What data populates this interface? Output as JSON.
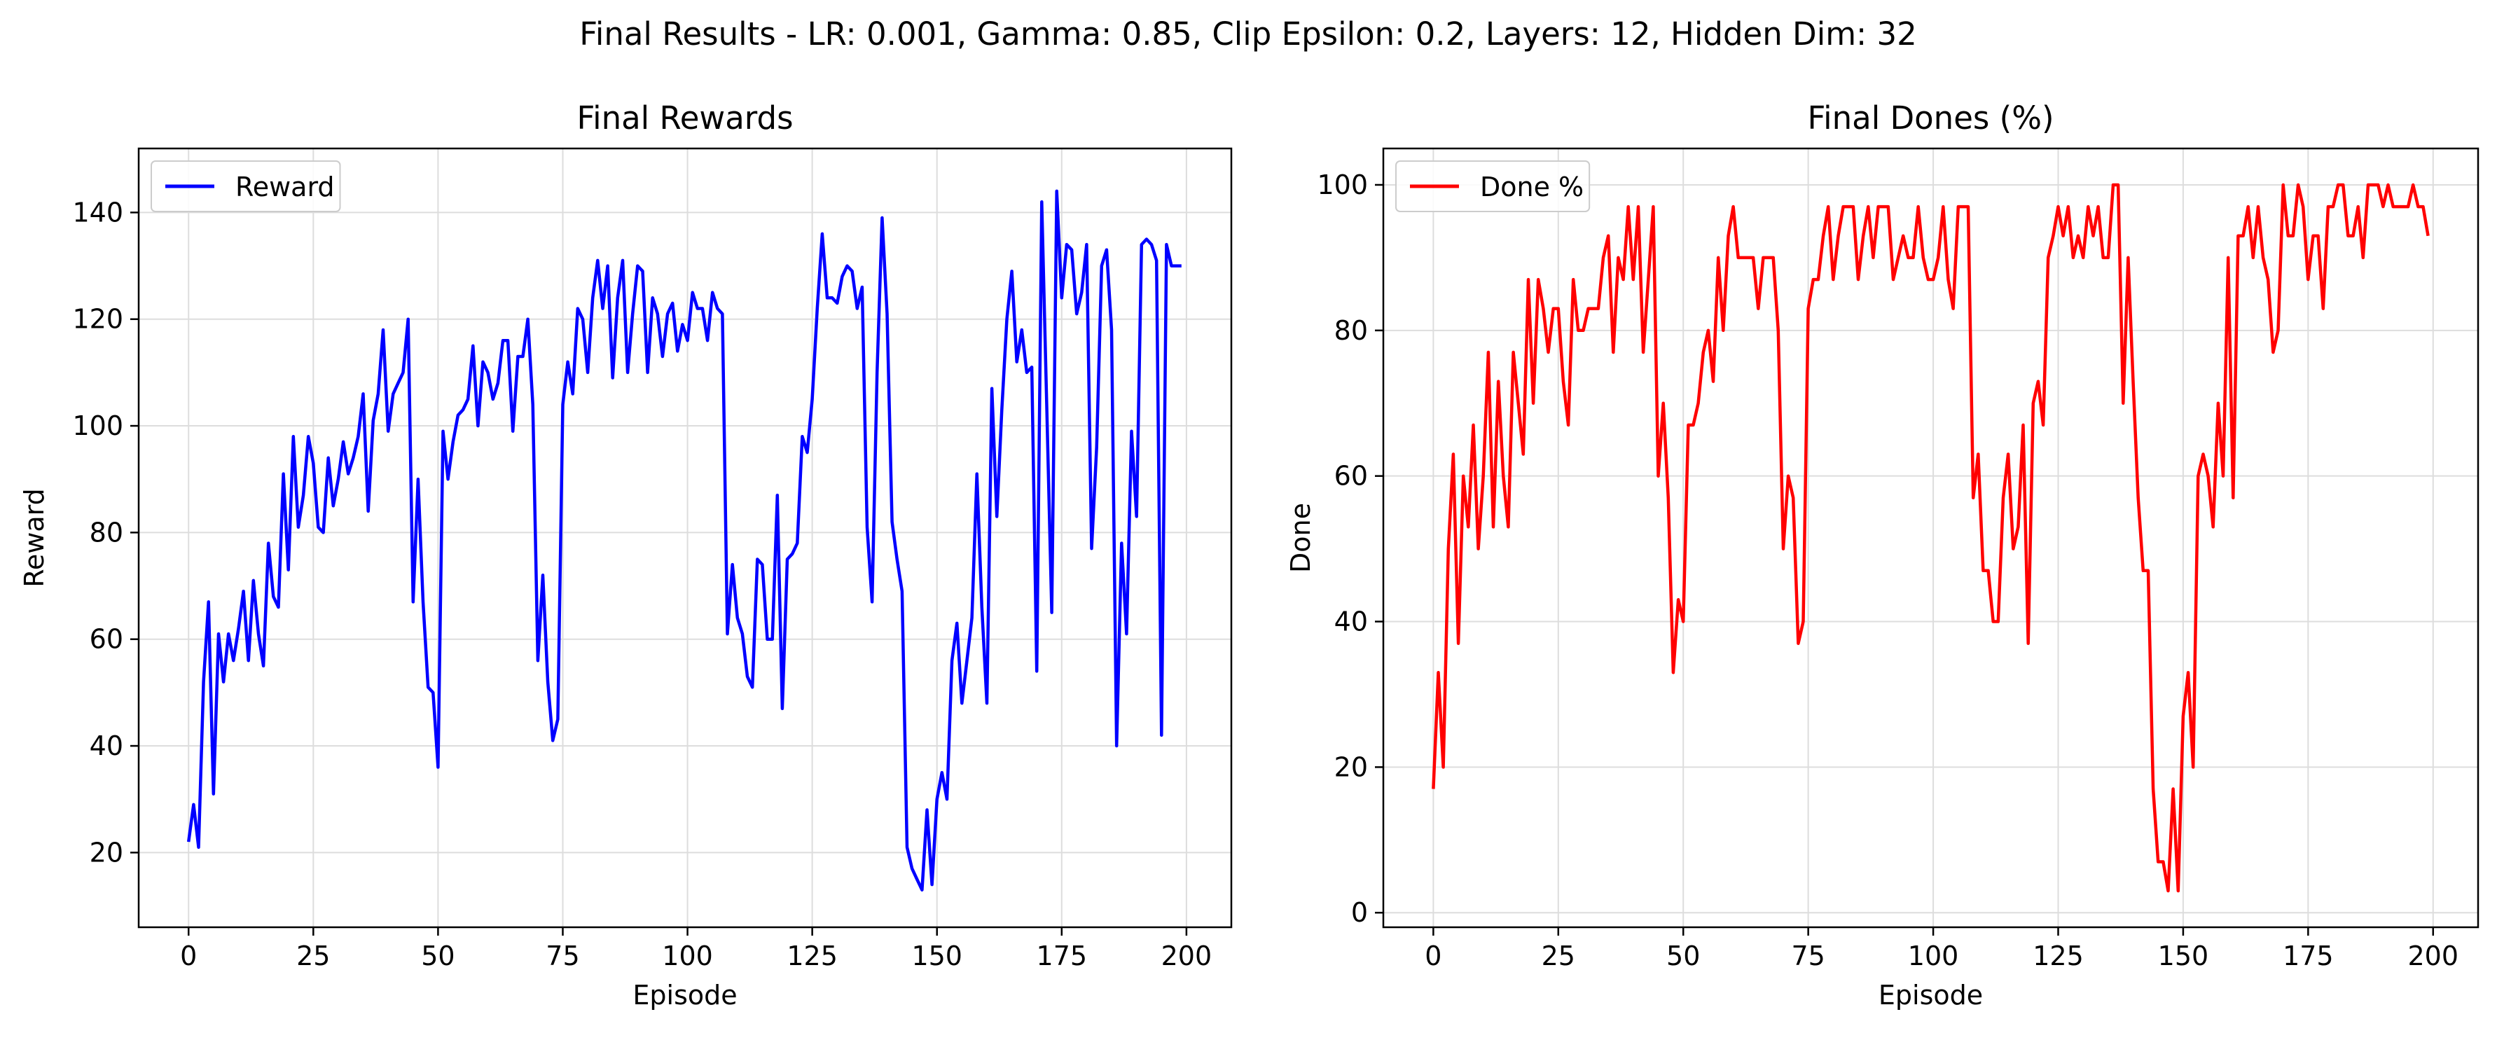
{
  "figure_title": "Final Results - LR: 0.001, Gamma: 0.85, Clip Epsilon: 0.2, Layers: 12, Hidden Dim: 32",
  "chart_data": [
    {
      "type": "line",
      "title": "Final Rewards",
      "xlabel": "Episode",
      "ylabel": "Reward",
      "xlim": [
        -10,
        209
      ],
      "ylim": [
        6,
        152
      ],
      "xticks": [
        0,
        25,
        50,
        75,
        100,
        125,
        150,
        175,
        200
      ],
      "yticks": [
        20,
        40,
        60,
        80,
        100,
        120,
        140
      ],
      "grid": true,
      "legend_position": "top-left",
      "series": [
        {
          "name": "Reward",
          "color": "#0000ff",
          "x": [
            0,
            1,
            2,
            3,
            4,
            5,
            6,
            7,
            8,
            9,
            10,
            11,
            12,
            13,
            14,
            15,
            16,
            17,
            18,
            19,
            20,
            21,
            22,
            23,
            24,
            25,
            26,
            27,
            28,
            29,
            30,
            31,
            32,
            33,
            34,
            35,
            36,
            37,
            38,
            39,
            40,
            41,
            42,
            43,
            44,
            45,
            46,
            47,
            48,
            49,
            50,
            51,
            52,
            53,
            54,
            55,
            56,
            57,
            58,
            59,
            60,
            61,
            62,
            63,
            64,
            65,
            66,
            67,
            68,
            69,
            70,
            71,
            72,
            73,
            74,
            75,
            76,
            77,
            78,
            79,
            80,
            81,
            82,
            83,
            84,
            85,
            86,
            87,
            88,
            89,
            90,
            91,
            92,
            93,
            94,
            95,
            96,
            97,
            98,
            99,
            100,
            101,
            102,
            103,
            104,
            105,
            106,
            107,
            108,
            109,
            110,
            111,
            112,
            113,
            114,
            115,
            116,
            117,
            118,
            119,
            120,
            121,
            122,
            123,
            124,
            125,
            126,
            127,
            128,
            129,
            130,
            131,
            132,
            133,
            134,
            135,
            136,
            137,
            138,
            139,
            140,
            141,
            142,
            143,
            144,
            145,
            146,
            147,
            148,
            149,
            150,
            151,
            152,
            153,
            154,
            155,
            156,
            157,
            158,
            159,
            160,
            161,
            162,
            163,
            164,
            165,
            166,
            167,
            168,
            169,
            170,
            171,
            172,
            173,
            174,
            175,
            176,
            177,
            178,
            179,
            180,
            181,
            182,
            183,
            184,
            185,
            186,
            187,
            188,
            189,
            190,
            191,
            192,
            193,
            194,
            195,
            196,
            197,
            198,
            199
          ],
          "y": [
            22,
            29,
            21,
            52,
            67,
            31,
            61,
            52,
            61,
            56,
            62,
            69,
            56,
            71,
            61,
            55,
            78,
            68,
            66,
            91,
            73,
            98,
            81,
            87,
            98,
            93,
            81,
            80,
            94,
            85,
            90,
            97,
            91,
            94,
            98,
            106,
            84,
            101,
            106,
            118,
            99,
            106,
            108,
            110,
            120,
            67,
            90,
            67,
            51,
            50,
            36,
            99,
            90,
            97,
            102,
            103,
            105,
            115,
            100,
            112,
            110,
            105,
            108,
            116,
            116,
            99,
            113,
            113,
            120,
            104,
            56,
            72,
            52,
            41,
            45,
            104,
            112,
            106,
            122,
            120,
            110,
            124,
            131,
            122,
            130,
            109,
            124,
            131,
            110,
            121,
            130,
            129,
            110,
            124,
            121,
            113,
            121,
            123,
            114,
            119,
            116,
            125,
            122,
            122,
            116,
            125,
            122,
            121,
            61,
            74,
            64,
            61,
            53,
            51,
            75,
            74,
            60,
            60,
            87,
            47,
            75,
            76,
            78,
            98,
            95,
            105,
            122,
            136,
            124,
            124,
            123,
            128,
            130,
            129,
            122,
            126,
            81,
            67,
            110,
            139,
            121,
            82,
            75,
            69,
            21,
            17,
            15,
            13,
            28,
            14,
            30,
            35,
            30,
            56,
            63,
            48,
            56,
            64,
            91,
            66,
            48,
            107,
            83,
            103,
            120,
            129,
            112,
            118,
            110,
            111,
            54,
            142,
            104,
            65,
            144,
            124,
            134,
            133,
            121,
            125,
            134,
            77,
            96,
            130,
            133,
            118,
            40,
            78,
            61,
            99,
            83,
            134,
            135,
            134,
            131,
            42,
            134,
            130,
            130,
            130
          ]
        }
      ]
    },
    {
      "type": "line",
      "title": "Final Dones (%)",
      "xlabel": "Episode",
      "ylabel": "Done",
      "xlim": [
        -10,
        209
      ],
      "ylim": [
        -2,
        105
      ],
      "xticks": [
        0,
        25,
        50,
        75,
        100,
        125,
        150,
        175,
        200
      ],
      "yticks": [
        0,
        20,
        40,
        60,
        80,
        100
      ],
      "grid": true,
      "legend_position": "top-left",
      "series": [
        {
          "name": "Done %",
          "color": "#ff0000",
          "x": [
            0,
            1,
            2,
            3,
            4,
            5,
            6,
            7,
            8,
            9,
            10,
            11,
            12,
            13,
            14,
            15,
            16,
            17,
            18,
            19,
            20,
            21,
            22,
            23,
            24,
            25,
            26,
            27,
            28,
            29,
            30,
            31,
            32,
            33,
            34,
            35,
            36,
            37,
            38,
            39,
            40,
            41,
            42,
            43,
            44,
            45,
            46,
            47,
            48,
            49,
            50,
            51,
            52,
            53,
            54,
            55,
            56,
            57,
            58,
            59,
            60,
            61,
            62,
            63,
            64,
            65,
            66,
            67,
            68,
            69,
            70,
            71,
            72,
            73,
            74,
            75,
            76,
            77,
            78,
            79,
            80,
            81,
            82,
            83,
            84,
            85,
            86,
            87,
            88,
            89,
            90,
            91,
            92,
            93,
            94,
            95,
            96,
            97,
            98,
            99,
            100,
            101,
            102,
            103,
            104,
            105,
            106,
            107,
            108,
            109,
            110,
            111,
            112,
            113,
            114,
            115,
            116,
            117,
            118,
            119,
            120,
            121,
            122,
            123,
            124,
            125,
            126,
            127,
            128,
            129,
            130,
            131,
            132,
            133,
            134,
            135,
            136,
            137,
            138,
            139,
            140,
            141,
            142,
            143,
            144,
            145,
            146,
            147,
            148,
            149,
            150,
            151,
            152,
            153,
            154,
            155,
            156,
            157,
            158,
            159,
            160,
            161,
            162,
            163,
            164,
            165,
            166,
            167,
            168,
            169,
            170,
            171,
            172,
            173,
            174,
            175,
            176,
            177,
            178,
            179,
            180,
            181,
            182,
            183,
            184,
            185,
            186,
            187,
            188,
            189,
            190,
            191,
            192,
            193,
            194,
            195,
            196,
            197,
            198,
            199
          ],
          "y": [
            17,
            33,
            20,
            50,
            63,
            37,
            60,
            53,
            67,
            50,
            60,
            77,
            53,
            73,
            60,
            53,
            77,
            70,
            63,
            87,
            70,
            87,
            83,
            77,
            83,
            83,
            73,
            67,
            87,
            80,
            80,
            83,
            83,
            83,
            90,
            93,
            77,
            90,
            87,
            97,
            87,
            97,
            77,
            87,
            97,
            60,
            70,
            57,
            33,
            43,
            40,
            67,
            67,
            70,
            77,
            80,
            73,
            90,
            80,
            93,
            97,
            90,
            90,
            90,
            90,
            83,
            90,
            90,
            90,
            80,
            50,
            60,
            57,
            37,
            40,
            83,
            87,
            87,
            93,
            97,
            87,
            93,
            97,
            97,
            97,
            87,
            93,
            97,
            90,
            97,
            97,
            97,
            87,
            90,
            93,
            90,
            90,
            97,
            90,
            87,
            87,
            90,
            97,
            87,
            83,
            97,
            97,
            97,
            57,
            63,
            47,
            47,
            40,
            40,
            57,
            63,
            50,
            53,
            67,
            37,
            70,
            73,
            67,
            90,
            93,
            97,
            93,
            97,
            90,
            93,
            90,
            97,
            93,
            97,
            90,
            90,
            100,
            100,
            70,
            90,
            73,
            57,
            47,
            47,
            17,
            7,
            7,
            3,
            17,
            3,
            27,
            33,
            20,
            60,
            63,
            60,
            53,
            70,
            60,
            90,
            57,
            93,
            93,
            97,
            90,
            97,
            90,
            87,
            77,
            80,
            100,
            93,
            93,
            100,
            97,
            87,
            93,
            93,
            83,
            97,
            97,
            100,
            100,
            93,
            93,
            97,
            90,
            100,
            100,
            100,
            97,
            100,
            97,
            97,
            97,
            97,
            100,
            97,
            97,
            93
          ]
        }
      ]
    }
  ]
}
